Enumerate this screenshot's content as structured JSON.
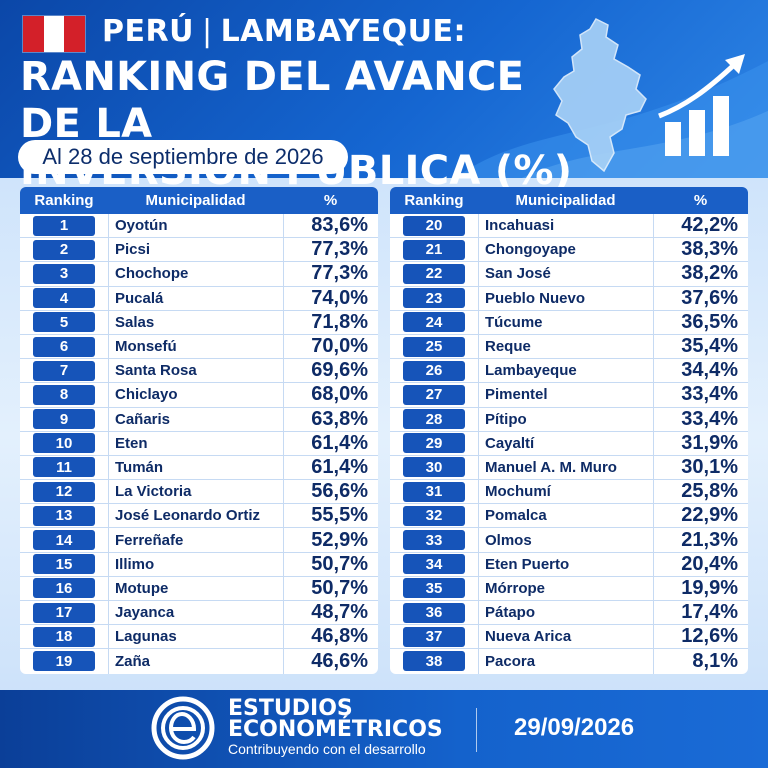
{
  "header": {
    "country": "PERÚ",
    "region": "LAMBAYEQUE:",
    "title_line1": "RANKING DEL AVANCE DE LA",
    "title_line2": "INVERSIÓN PÚBLICA (%)",
    "date_label": "Al 28 de septiembre de 2026"
  },
  "table": {
    "headers": {
      "rank": "Ranking",
      "municipality": "Municipalidad",
      "percent": "%"
    },
    "left": [
      {
        "rank": "1",
        "name": "Oyotún",
        "pct": "83,6%"
      },
      {
        "rank": "2",
        "name": "Picsi",
        "pct": "77,3%"
      },
      {
        "rank": "3",
        "name": "Chochope",
        "pct": "77,3%"
      },
      {
        "rank": "4",
        "name": "Pucalá",
        "pct": "74,0%"
      },
      {
        "rank": "5",
        "name": "Salas",
        "pct": "71,8%"
      },
      {
        "rank": "6",
        "name": "Monsefú",
        "pct": "70,0%"
      },
      {
        "rank": "7",
        "name": "Santa Rosa",
        "pct": "69,6%"
      },
      {
        "rank": "8",
        "name": "Chiclayo",
        "pct": "68,0%"
      },
      {
        "rank": "9",
        "name": "Cañaris",
        "pct": "63,8%"
      },
      {
        "rank": "10",
        "name": "Eten",
        "pct": "61,4%"
      },
      {
        "rank": "11",
        "name": "Tumán",
        "pct": "61,4%"
      },
      {
        "rank": "12",
        "name": "La Victoria",
        "pct": "56,6%"
      },
      {
        "rank": "13",
        "name": "José Leonardo Ortiz",
        "pct": "55,5%"
      },
      {
        "rank": "14",
        "name": "Ferreñafe",
        "pct": "52,9%"
      },
      {
        "rank": "15",
        "name": "Illimo",
        "pct": "50,7%"
      },
      {
        "rank": "16",
        "name": "Motupe",
        "pct": "50,7%"
      },
      {
        "rank": "17",
        "name": "Jayanca",
        "pct": "48,7%"
      },
      {
        "rank": "18",
        "name": "Lagunas",
        "pct": "46,8%"
      },
      {
        "rank": "19",
        "name": "Zaña",
        "pct": "46,6%"
      }
    ],
    "right": [
      {
        "rank": "20",
        "name": "Incahuasi",
        "pct": "42,2%"
      },
      {
        "rank": "21",
        "name": "Chongoyape",
        "pct": "38,3%"
      },
      {
        "rank": "22",
        "name": "San José",
        "pct": "38,2%"
      },
      {
        "rank": "23",
        "name": "Pueblo Nuevo",
        "pct": "37,6%"
      },
      {
        "rank": "24",
        "name": "Túcume",
        "pct": "36,5%"
      },
      {
        "rank": "25",
        "name": "Reque",
        "pct": "35,4%"
      },
      {
        "rank": "26",
        "name": "Lambayeque",
        "pct": "34,4%"
      },
      {
        "rank": "27",
        "name": "Pimentel",
        "pct": "33,4%"
      },
      {
        "rank": "28",
        "name": "Pítipo",
        "pct": "33,4%"
      },
      {
        "rank": "29",
        "name": "Cayaltí",
        "pct": "31,9%"
      },
      {
        "rank": "30",
        "name": "Manuel A. M. Muro",
        "pct": "30,1%"
      },
      {
        "rank": "31",
        "name": "Mochumí",
        "pct": "25,8%"
      },
      {
        "rank": "32",
        "name": "Pomalca",
        "pct": "22,9%"
      },
      {
        "rank": "33",
        "name": "Olmos",
        "pct": "21,3%"
      },
      {
        "rank": "34",
        "name": "Eten Puerto",
        "pct": "20,4%"
      },
      {
        "rank": "35",
        "name": "Mórrope",
        "pct": "19,9%"
      },
      {
        "rank": "36",
        "name": "Pátapo",
        "pct": "17,4%"
      },
      {
        "rank": "37",
        "name": "Nueva Arica",
        "pct": "12,6%"
      },
      {
        "rank": "38",
        "name": "Pacora",
        "pct": "8,1%"
      }
    ]
  },
  "footer": {
    "brand_line1": "ESTUDIOS",
    "brand_line2": "ECONOMÉTRICOS",
    "tagline": "Contribuyendo con el desarrollo",
    "date": "29/09/2026"
  },
  "icons": {
    "flag": "peru-flag-icon",
    "map": "lambayeque-map-icon",
    "chart": "growth-chart-icon",
    "logo": "estudios-econometricos-logo"
  },
  "colors": {
    "header_blue": "#0b47a8",
    "badge_blue": "#1654b9",
    "text_navy": "#0e2b66",
    "flag_red": "#d32029"
  }
}
